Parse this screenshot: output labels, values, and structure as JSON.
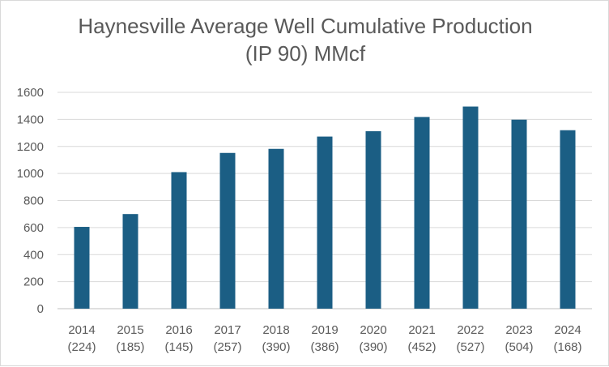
{
  "chart_data": {
    "type": "bar",
    "title_line1": "Haynesville Average Well Cumulative Production",
    "title_line2": "(IP 90) MMcf",
    "xlabel": "",
    "ylabel": "",
    "ylim": [
      0,
      1600
    ],
    "yticks": [
      "0",
      "200",
      "400",
      "600",
      "800",
      "1000",
      "1200",
      "1400",
      "1600"
    ],
    "grid": true,
    "legend": "none",
    "categories": [
      {
        "year": "2014",
        "count": "(224)"
      },
      {
        "year": "2015",
        "count": "(185)"
      },
      {
        "year": "2016",
        "count": "(145)"
      },
      {
        "year": "2017",
        "count": "(257)"
      },
      {
        "year": "2018",
        "count": "(390)"
      },
      {
        "year": "2019",
        "count": "(386)"
      },
      {
        "year": "2020",
        "count": "(390)"
      },
      {
        "year": "2021",
        "count": "(452)"
      },
      {
        "year": "2022",
        "count": "(527)"
      },
      {
        "year": "2023",
        "count": "(504)"
      },
      {
        "year": "2024",
        "count": "(168)"
      }
    ],
    "values": [
      605,
      700,
      1010,
      1152,
      1182,
      1273,
      1313,
      1418,
      1495,
      1398,
      1320
    ],
    "bar_color": "#1b5e84",
    "grid_color": "#d9d9d9"
  }
}
